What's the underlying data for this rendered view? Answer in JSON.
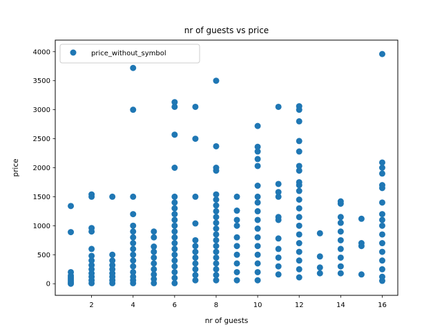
{
  "chart_data": {
    "type": "scatter",
    "title": "nr of guests vs price",
    "xlabel": "nr of guests",
    "ylabel": "price",
    "xlim": [
      0.25,
      16.75
    ],
    "ylim": [
      -200,
      4200
    ],
    "xticks": [
      2,
      4,
      6,
      8,
      10,
      12,
      14,
      16
    ],
    "yticks": [
      0,
      500,
      1000,
      1500,
      2000,
      2500,
      3000,
      3500,
      4000
    ],
    "grid": false,
    "legend_position": "top-left",
    "series": [
      {
        "name": "price_without_symbol",
        "color": "#1f77b4",
        "points": [
          [
            1,
            0
          ],
          [
            1,
            20
          ],
          [
            1,
            50
          ],
          [
            1,
            80
          ],
          [
            1,
            110
          ],
          [
            1,
            140
          ],
          [
            1,
            200
          ],
          [
            1,
            890
          ],
          [
            1,
            1340
          ],
          [
            2,
            10
          ],
          [
            2,
            60
          ],
          [
            2,
            120
          ],
          [
            2,
            180
          ],
          [
            2,
            250
          ],
          [
            2,
            320
          ],
          [
            2,
            400
          ],
          [
            2,
            480
          ],
          [
            2,
            600
          ],
          [
            2,
            900
          ],
          [
            2,
            960
          ],
          [
            2,
            1500
          ],
          [
            2,
            1540
          ],
          [
            3,
            10
          ],
          [
            3,
            60
          ],
          [
            3,
            120
          ],
          [
            3,
            180
          ],
          [
            3,
            250
          ],
          [
            3,
            320
          ],
          [
            3,
            400
          ],
          [
            3,
            500
          ],
          [
            3,
            1500
          ],
          [
            4,
            10
          ],
          [
            4,
            60
          ],
          [
            4,
            120
          ],
          [
            4,
            200
          ],
          [
            4,
            300
          ],
          [
            4,
            400
          ],
          [
            4,
            500
          ],
          [
            4,
            600
          ],
          [
            4,
            700
          ],
          [
            4,
            800
          ],
          [
            4,
            900
          ],
          [
            4,
            1000
          ],
          [
            4,
            1200
          ],
          [
            4,
            1500
          ],
          [
            4,
            3000
          ],
          [
            4,
            3720
          ],
          [
            5,
            10
          ],
          [
            5,
            80
          ],
          [
            5,
            160
          ],
          [
            5,
            250
          ],
          [
            5,
            350
          ],
          [
            5,
            450
          ],
          [
            5,
            550
          ],
          [
            5,
            640
          ],
          [
            5,
            800
          ],
          [
            5,
            900
          ],
          [
            6,
            10
          ],
          [
            6,
            100
          ],
          [
            6,
            200
          ],
          [
            6,
            300
          ],
          [
            6,
            400
          ],
          [
            6,
            500
          ],
          [
            6,
            600
          ],
          [
            6,
            700
          ],
          [
            6,
            800
          ],
          [
            6,
            900
          ],
          [
            6,
            1000
          ],
          [
            6,
            1100
          ],
          [
            6,
            1200
          ],
          [
            6,
            1300
          ],
          [
            6,
            1400
          ],
          [
            6,
            1500
          ],
          [
            6,
            2000
          ],
          [
            6,
            2570
          ],
          [
            6,
            3050
          ],
          [
            6,
            3130
          ],
          [
            7,
            60
          ],
          [
            7,
            150
          ],
          [
            7,
            250
          ],
          [
            7,
            350
          ],
          [
            7,
            450
          ],
          [
            7,
            550
          ],
          [
            7,
            650
          ],
          [
            7,
            750
          ],
          [
            7,
            1040
          ],
          [
            7,
            1500
          ],
          [
            7,
            2500
          ],
          [
            7,
            3050
          ],
          [
            8,
            60
          ],
          [
            8,
            150
          ],
          [
            8,
            250
          ],
          [
            8,
            350
          ],
          [
            8,
            450
          ],
          [
            8,
            550
          ],
          [
            8,
            650
          ],
          [
            8,
            750
          ],
          [
            8,
            850
          ],
          [
            8,
            950
          ],
          [
            8,
            1050
          ],
          [
            8,
            1150
          ],
          [
            8,
            1250
          ],
          [
            8,
            1350
          ],
          [
            8,
            1450
          ],
          [
            8,
            1540
          ],
          [
            8,
            1950
          ],
          [
            8,
            2000
          ],
          [
            8,
            2370
          ],
          [
            8,
            3500
          ],
          [
            9,
            60
          ],
          [
            9,
            200
          ],
          [
            9,
            350
          ],
          [
            9,
            500
          ],
          [
            9,
            650
          ],
          [
            9,
            800
          ],
          [
            9,
            1000
          ],
          [
            9,
            1100
          ],
          [
            9,
            1260
          ],
          [
            9,
            1500
          ],
          [
            10,
            60
          ],
          [
            10,
            200
          ],
          [
            10,
            350
          ],
          [
            10,
            500
          ],
          [
            10,
            650
          ],
          [
            10,
            800
          ],
          [
            10,
            950
          ],
          [
            10,
            1100
          ],
          [
            10,
            1250
          ],
          [
            10,
            1400
          ],
          [
            10,
            1500
          ],
          [
            10,
            1690
          ],
          [
            10,
            2030
          ],
          [
            10,
            2150
          ],
          [
            10,
            2280
          ],
          [
            10,
            2360
          ],
          [
            10,
            2720
          ],
          [
            11,
            160
          ],
          [
            11,
            300
          ],
          [
            11,
            450
          ],
          [
            11,
            600
          ],
          [
            11,
            780
          ],
          [
            11,
            1100
          ],
          [
            11,
            1150
          ],
          [
            11,
            1500
          ],
          [
            11,
            1580
          ],
          [
            11,
            1720
          ],
          [
            11,
            3050
          ],
          [
            12,
            110
          ],
          [
            12,
            250
          ],
          [
            12,
            400
          ],
          [
            12,
            550
          ],
          [
            12,
            700
          ],
          [
            12,
            850
          ],
          [
            12,
            1000
          ],
          [
            12,
            1150
          ],
          [
            12,
            1300
          ],
          [
            12,
            1450
          ],
          [
            12,
            1600
          ],
          [
            12,
            1700
          ],
          [
            12,
            1750
          ],
          [
            12,
            1950
          ],
          [
            12,
            2030
          ],
          [
            12,
            2280
          ],
          [
            12,
            2460
          ],
          [
            12,
            2800
          ],
          [
            12,
            3000
          ],
          [
            12,
            3060
          ],
          [
            13,
            180
          ],
          [
            13,
            280
          ],
          [
            13,
            470
          ],
          [
            13,
            870
          ],
          [
            14,
            180
          ],
          [
            14,
            300
          ],
          [
            14,
            450
          ],
          [
            14,
            600
          ],
          [
            14,
            750
          ],
          [
            14,
            900
          ],
          [
            14,
            1050
          ],
          [
            14,
            1150
          ],
          [
            14,
            1380
          ],
          [
            14,
            1420
          ],
          [
            15,
            160
          ],
          [
            15,
            650
          ],
          [
            15,
            700
          ],
          [
            15,
            1120
          ],
          [
            16,
            50
          ],
          [
            16,
            120
          ],
          [
            16,
            250
          ],
          [
            16,
            400
          ],
          [
            16,
            550
          ],
          [
            16,
            700
          ],
          [
            16,
            850
          ],
          [
            16,
            1000
          ],
          [
            16,
            1100
          ],
          [
            16,
            1200
          ],
          [
            16,
            1400
          ],
          [
            16,
            1650
          ],
          [
            16,
            1700
          ],
          [
            16,
            1900
          ],
          [
            16,
            2000
          ],
          [
            16,
            2090
          ],
          [
            16,
            3960
          ]
        ]
      }
    ]
  }
}
